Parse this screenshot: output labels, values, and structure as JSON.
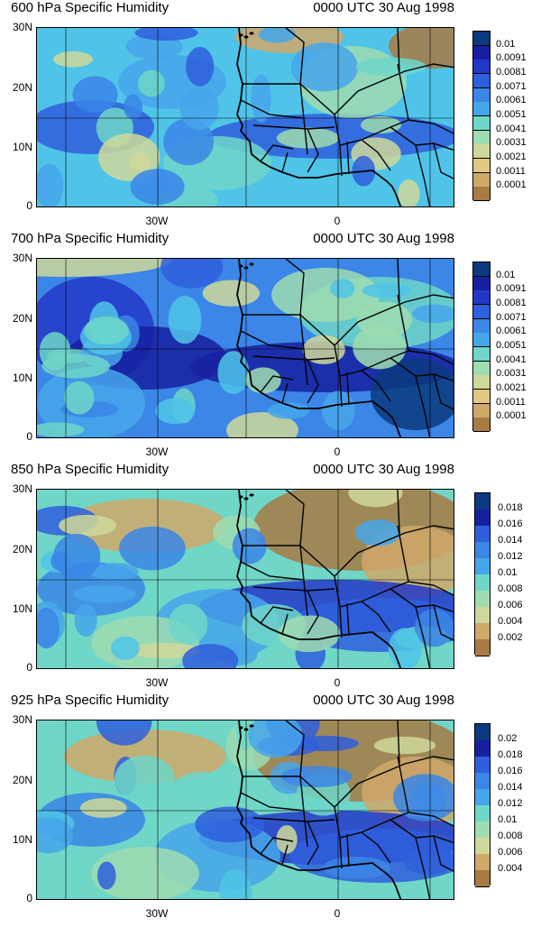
{
  "panels": [
    {
      "title_left": "600 hPa Specific Humidity",
      "title_right": "0000 UTC 30 Aug 1998",
      "colorbar_labels": [
        "0.01",
        "0.0091",
        "0.0081",
        "0.0071",
        "0.0061",
        "0.0051",
        "0.0041",
        "0.0031",
        "0.0021",
        "0.0011",
        "0.0001"
      ],
      "theme": "mid"
    },
    {
      "title_left": "700 hPa Specific Humidity",
      "title_right": "0000 UTC 30 Aug 1998",
      "colorbar_labels": [
        "0.01",
        "0.0091",
        "0.0081",
        "0.0071",
        "0.0061",
        "0.0051",
        "0.0041",
        "0.0031",
        "0.0021",
        "0.0011",
        "0.0001"
      ],
      "theme": "wet"
    },
    {
      "title_left": "850 hPa Specific Humidity",
      "title_right": "0000 UTC 30 Aug 1998",
      "colorbar_labels": [
        "0.018",
        "0.016",
        "0.014",
        "0.012",
        "0.01",
        "0.008",
        "0.006",
        "0.004",
        "0.002"
      ],
      "theme": "dry"
    },
    {
      "title_left": "925 hPa Specific Humidity",
      "title_right": "0000 UTC 30 Aug 1998",
      "colorbar_labels": [
        "0.02",
        "0.018",
        "0.016",
        "0.014",
        "0.012",
        "0.01",
        "0.008",
        "0.006",
        "0.004"
      ],
      "theme": "dry"
    }
  ],
  "y_ticks": [
    "30N",
    "20N",
    "10N",
    "0"
  ],
  "x_ticks": [
    "30W",
    "0"
  ],
  "palette": [
    "#0b3a7e",
    "#1820a0",
    "#2438c8",
    "#2f5fdc",
    "#3b86e6",
    "#46a6ea",
    "#4fc4e8",
    "#6fd6c8",
    "#9fdcb0",
    "#cfd89a",
    "#e3c884",
    "#d0a86a",
    "#a87a44"
  ]
}
